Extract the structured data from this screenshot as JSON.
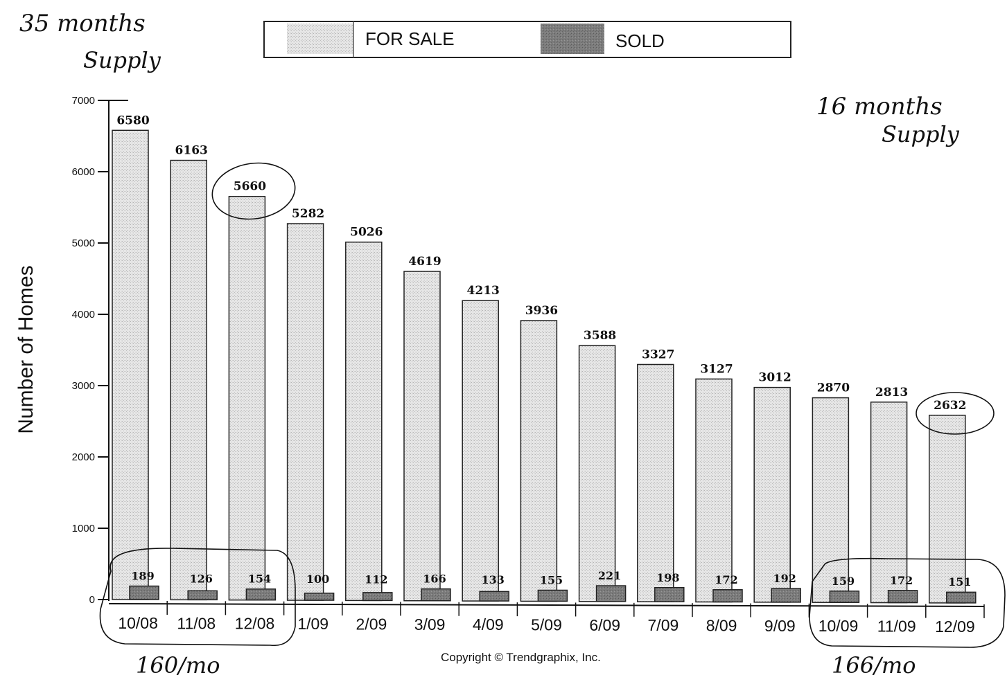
{
  "chart_data": {
    "type": "bar",
    "ylabel": "Number of Homes",
    "ylim": [
      0,
      7000
    ],
    "yticks": [
      0,
      1000,
      2000,
      3000,
      4000,
      5000,
      6000,
      7000
    ],
    "categories": [
      "10/08",
      "11/08",
      "12/08",
      "1/09",
      "2/09",
      "3/09",
      "4/09",
      "5/09",
      "6/09",
      "7/09",
      "8/09",
      "9/09",
      "10/09",
      "11/09",
      "12/09"
    ],
    "series": [
      {
        "name": "FOR SALE",
        "color": "#d9d9d9",
        "values": [
          6580,
          6163,
          5660,
          5282,
          5026,
          4619,
          4213,
          3936,
          3588,
          3327,
          3127,
          3012,
          2870,
          2813,
          2632
        ]
      },
      {
        "name": "SOLD",
        "color": "#7a7a7a",
        "values": [
          189,
          126,
          154,
          100,
          112,
          166,
          133,
          155,
          221,
          198,
          172,
          192,
          159,
          172,
          151
        ]
      }
    ],
    "legend_position": "top-center",
    "grid": false
  },
  "annotations": {
    "top_left": [
      "35 months",
      "Supply"
    ],
    "top_right": [
      "16 months",
      "Supply"
    ],
    "bottom_left": "160/mo",
    "bottom_right": "166/mo"
  },
  "footer": {
    "copyright": "Copyright © Trendgraphix, Inc."
  }
}
